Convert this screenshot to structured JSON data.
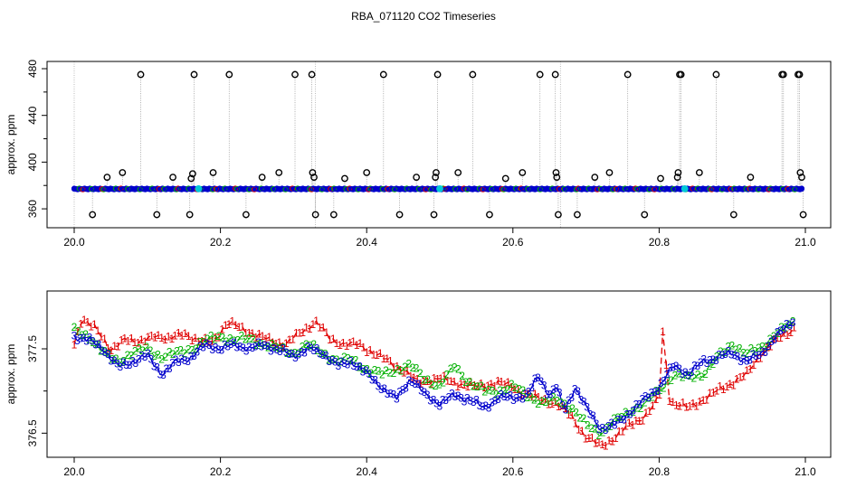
{
  "title": "RBA_071120  CO2 Timeseries",
  "colors": {
    "outlier": "#000000",
    "guide": "#bdbdbd",
    "series1": "#e00000",
    "series2": "#00b000",
    "series3": "#0000cc",
    "cyan": "#00c8d8"
  },
  "chart_data": [
    {
      "type": "scatter",
      "panel": "top",
      "xlabel": "",
      "ylabel": "approx. ppm",
      "xlim": [
        20.0,
        21.0
      ],
      "ylim": [
        350,
        480
      ],
      "xticks": [
        "20.0",
        "20.2",
        "20.4",
        "20.6",
        "20.8",
        "21.0"
      ],
      "yticks": [
        "360",
        "400",
        "440",
        "480"
      ],
      "baseline": 377,
      "baseline_range": [
        20.0,
        20.995
      ],
      "cyan_markers": [
        {
          "x": 20.17,
          "y": 377.2
        },
        {
          "x": 20.5,
          "y": 377.2
        },
        {
          "x": 20.835,
          "y": 377.2
        }
      ],
      "outlier_points": [
        {
          "x": 20.025,
          "y": 355
        },
        {
          "x": 20.045,
          "y": 387
        },
        {
          "x": 20.066,
          "y": 391
        },
        {
          "x": 20.091,
          "y": 475
        },
        {
          "x": 20.113,
          "y": 355
        },
        {
          "x": 20.135,
          "y": 387
        },
        {
          "x": 20.158,
          "y": 355
        },
        {
          "x": 20.16,
          "y": 386
        },
        {
          "x": 20.162,
          "y": 390
        },
        {
          "x": 20.164,
          "y": 475
        },
        {
          "x": 20.19,
          "y": 391
        },
        {
          "x": 20.212,
          "y": 475
        },
        {
          "x": 20.235,
          "y": 355
        },
        {
          "x": 20.257,
          "y": 387
        },
        {
          "x": 20.28,
          "y": 391
        },
        {
          "x": 20.302,
          "y": 475
        },
        {
          "x": 20.325,
          "y": 475
        },
        {
          "x": 20.326,
          "y": 391
        },
        {
          "x": 20.328,
          "y": 387
        },
        {
          "x": 20.33,
          "y": 355
        },
        {
          "x": 20.355,
          "y": 355
        },
        {
          "x": 20.37,
          "y": 386
        },
        {
          "x": 20.4,
          "y": 391
        },
        {
          "x": 20.423,
          "y": 475
        },
        {
          "x": 20.445,
          "y": 355
        },
        {
          "x": 20.468,
          "y": 387
        },
        {
          "x": 20.492,
          "y": 355
        },
        {
          "x": 20.494,
          "y": 387
        },
        {
          "x": 20.495,
          "y": 391
        },
        {
          "x": 20.497,
          "y": 475
        },
        {
          "x": 20.525,
          "y": 391
        },
        {
          "x": 20.545,
          "y": 475
        },
        {
          "x": 20.568,
          "y": 355
        },
        {
          "x": 20.59,
          "y": 386
        },
        {
          "x": 20.613,
          "y": 391
        },
        {
          "x": 20.637,
          "y": 475
        },
        {
          "x": 20.658,
          "y": 475
        },
        {
          "x": 20.659,
          "y": 391
        },
        {
          "x": 20.66,
          "y": 387
        },
        {
          "x": 20.662,
          "y": 355
        },
        {
          "x": 20.688,
          "y": 355
        },
        {
          "x": 20.712,
          "y": 387
        },
        {
          "x": 20.732,
          "y": 391
        },
        {
          "x": 20.757,
          "y": 475
        },
        {
          "x": 20.78,
          "y": 355
        },
        {
          "x": 20.802,
          "y": 386
        },
        {
          "x": 20.825,
          "y": 387
        },
        {
          "x": 20.826,
          "y": 391
        },
        {
          "x": 20.828,
          "y": 475
        },
        {
          "x": 20.83,
          "y": 475
        },
        {
          "x": 20.855,
          "y": 391
        },
        {
          "x": 20.878,
          "y": 475
        },
        {
          "x": 20.902,
          "y": 355
        },
        {
          "x": 20.925,
          "y": 387
        },
        {
          "x": 20.968,
          "y": 475
        },
        {
          "x": 20.97,
          "y": 475
        },
        {
          "x": 20.99,
          "y": 475
        },
        {
          "x": 20.992,
          "y": 475
        },
        {
          "x": 20.993,
          "y": 391
        },
        {
          "x": 20.995,
          "y": 387
        },
        {
          "x": 20.997,
          "y": 355
        }
      ]
    },
    {
      "type": "line",
      "panel": "bottom",
      "xlabel": "",
      "ylabel": "approx. ppm",
      "xlim": [
        20.0,
        21.0
      ],
      "ylim": [
        376.3,
        378.1
      ],
      "xticks": [
        "20.0",
        "20.2",
        "20.4",
        "20.6",
        "20.8",
        "21.0"
      ],
      "yticks": [
        "376.5",
        "377.5"
      ],
      "series": [
        {
          "name": "1",
          "x_range": [
            20.0,
            20.985
          ],
          "anchors": [
            [
              20.0,
              377.55
            ],
            [
              20.01,
              377.82
            ],
            [
              20.03,
              377.78
            ],
            [
              20.05,
              377.45
            ],
            [
              20.07,
              377.65
            ],
            [
              20.09,
              377.55
            ],
            [
              20.11,
              377.68
            ],
            [
              20.13,
              377.6
            ],
            [
              20.15,
              377.7
            ],
            [
              20.17,
              377.58
            ],
            [
              20.19,
              377.6
            ],
            [
              20.21,
              377.8
            ],
            [
              20.23,
              377.75
            ],
            [
              20.25,
              377.65
            ],
            [
              20.27,
              377.6
            ],
            [
              20.29,
              377.55
            ],
            [
              20.31,
              377.7
            ],
            [
              20.33,
              377.82
            ],
            [
              20.35,
              377.62
            ],
            [
              20.37,
              377.55
            ],
            [
              20.39,
              377.55
            ],
            [
              20.41,
              377.45
            ],
            [
              20.43,
              377.35
            ],
            [
              20.45,
              377.25
            ],
            [
              20.47,
              377.1
            ],
            [
              20.5,
              377.15
            ],
            [
              20.52,
              377.1
            ],
            [
              20.55,
              377.05
            ],
            [
              20.58,
              377.1
            ],
            [
              20.6,
              377.05
            ],
            [
              20.62,
              376.95
            ],
            [
              20.64,
              376.9
            ],
            [
              20.66,
              376.85
            ],
            [
              20.68,
              376.7
            ],
            [
              20.7,
              376.45
            ],
            [
              20.72,
              376.35
            ],
            [
              20.74,
              376.45
            ],
            [
              20.76,
              376.6
            ],
            [
              20.78,
              376.7
            ],
            [
              20.8,
              376.9
            ],
            [
              20.806,
              377.85
            ],
            [
              20.812,
              376.95
            ],
            [
              20.82,
              376.85
            ],
            [
              20.84,
              376.8
            ],
            [
              20.86,
              376.9
            ],
            [
              20.88,
              377.0
            ],
            [
              20.9,
              377.1
            ],
            [
              20.92,
              377.2
            ],
            [
              20.94,
              377.45
            ],
            [
              20.96,
              377.6
            ],
            [
              20.985,
              377.75
            ]
          ]
        },
        {
          "name": "2",
          "x_range": [
            20.0,
            20.985
          ],
          "anchors": [
            [
              20.0,
              377.72
            ],
            [
              20.02,
              377.65
            ],
            [
              20.04,
              377.45
            ],
            [
              20.06,
              377.35
            ],
            [
              20.08,
              377.45
            ],
            [
              20.1,
              377.5
            ],
            [
              20.12,
              377.4
            ],
            [
              20.14,
              377.45
            ],
            [
              20.16,
              377.5
            ],
            [
              20.18,
              377.6
            ],
            [
              20.2,
              377.65
            ],
            [
              20.22,
              377.6
            ],
            [
              20.24,
              377.62
            ],
            [
              20.26,
              377.55
            ],
            [
              20.28,
              377.5
            ],
            [
              20.3,
              377.45
            ],
            [
              20.32,
              377.55
            ],
            [
              20.34,
              377.45
            ],
            [
              20.36,
              377.35
            ],
            [
              20.38,
              377.38
            ],
            [
              20.4,
              377.25
            ],
            [
              20.42,
              377.2
            ],
            [
              20.44,
              377.25
            ],
            [
              20.46,
              377.3
            ],
            [
              20.48,
              377.15
            ],
            [
              20.5,
              377.05
            ],
            [
              20.52,
              377.3
            ],
            [
              20.54,
              377.1
            ],
            [
              20.56,
              377.0
            ],
            [
              20.58,
              377.0
            ],
            [
              20.6,
              377.05
            ],
            [
              20.62,
              376.95
            ],
            [
              20.64,
              376.85
            ],
            [
              20.66,
              376.9
            ],
            [
              20.68,
              376.8
            ],
            [
              20.7,
              376.6
            ],
            [
              20.72,
              376.5
            ],
            [
              20.74,
              376.65
            ],
            [
              20.76,
              376.75
            ],
            [
              20.78,
              376.85
            ],
            [
              20.8,
              377.0
            ],
            [
              20.82,
              377.2
            ],
            [
              20.84,
              377.15
            ],
            [
              20.86,
              377.2
            ],
            [
              20.88,
              377.4
            ],
            [
              20.9,
              377.55
            ],
            [
              20.92,
              377.45
            ],
            [
              20.94,
              377.5
            ],
            [
              20.96,
              377.7
            ],
            [
              20.985,
              377.8
            ]
          ]
        },
        {
          "name": "3",
          "x_range": [
            20.0,
            20.985
          ],
          "anchors": [
            [
              20.0,
              377.65
            ],
            [
              20.02,
              377.6
            ],
            [
              20.04,
              377.5
            ],
            [
              20.06,
              377.28
            ],
            [
              20.08,
              377.35
            ],
            [
              20.1,
              377.42
            ],
            [
              20.12,
              377.2
            ],
            [
              20.14,
              377.35
            ],
            [
              20.16,
              377.4
            ],
            [
              20.18,
              377.55
            ],
            [
              20.2,
              377.5
            ],
            [
              20.22,
              377.55
            ],
            [
              20.24,
              377.5
            ],
            [
              20.26,
              377.55
            ],
            [
              20.28,
              377.48
            ],
            [
              20.3,
              377.42
            ],
            [
              20.32,
              377.5
            ],
            [
              20.34,
              377.45
            ],
            [
              20.36,
              377.3
            ],
            [
              20.38,
              377.35
            ],
            [
              20.4,
              377.2
            ],
            [
              20.42,
              377.05
            ],
            [
              20.44,
              376.9
            ],
            [
              20.46,
              377.15
            ],
            [
              20.48,
              376.95
            ],
            [
              20.5,
              376.85
            ],
            [
              20.52,
              376.95
            ],
            [
              20.54,
              376.9
            ],
            [
              20.56,
              376.8
            ],
            [
              20.58,
              376.92
            ],
            [
              20.6,
              376.92
            ],
            [
              20.62,
              376.95
            ],
            [
              20.635,
              377.18
            ],
            [
              20.65,
              376.95
            ],
            [
              20.66,
              377.05
            ],
            [
              20.67,
              376.75
            ],
            [
              20.685,
              377.05
            ],
            [
              20.7,
              376.8
            ],
            [
              20.72,
              376.55
            ],
            [
              20.74,
              376.6
            ],
            [
              20.76,
              376.75
            ],
            [
              20.78,
              376.9
            ],
            [
              20.8,
              377.05
            ],
            [
              20.82,
              377.3
            ],
            [
              20.84,
              377.2
            ],
            [
              20.86,
              377.35
            ],
            [
              20.88,
              377.4
            ],
            [
              20.9,
              377.45
            ],
            [
              20.92,
              377.35
            ],
            [
              20.94,
              377.45
            ],
            [
              20.96,
              377.65
            ],
            [
              20.985,
              377.85
            ]
          ]
        }
      ]
    }
  ]
}
